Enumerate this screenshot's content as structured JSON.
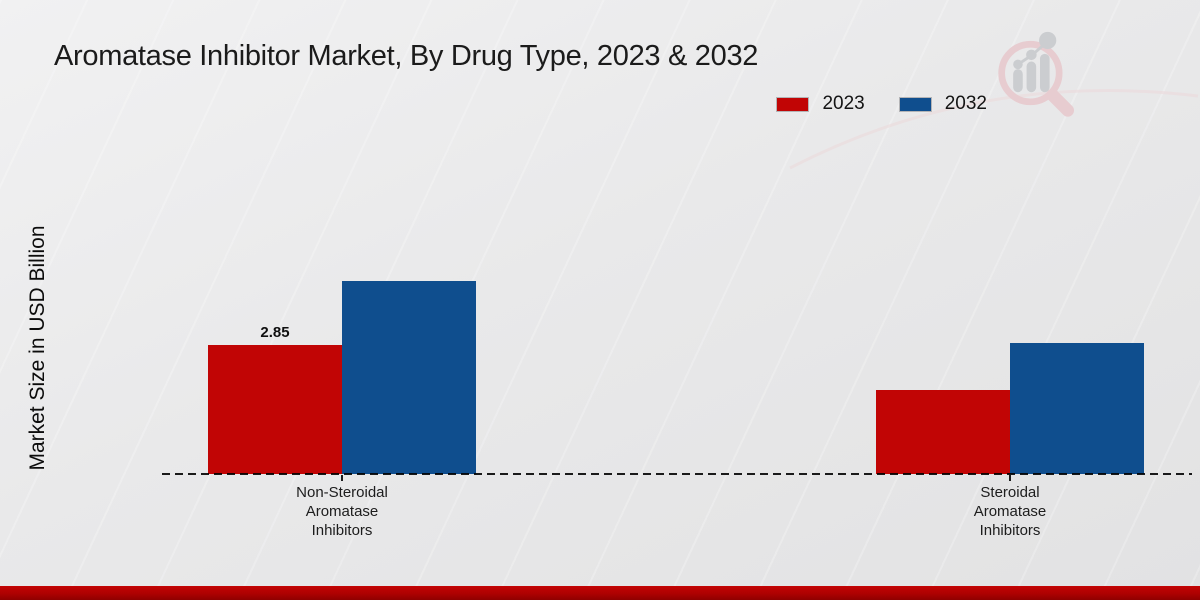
{
  "title": "Aromatase Inhibitor Market, By Drug Type, 2023 & 2032",
  "ylabel": "Market Size in USD Billion",
  "colors": {
    "series_2023": "#c10505",
    "series_2032": "#0f4e8e",
    "background": "#e9e9ea",
    "baseline": "#1c1c1c",
    "bottom_bar": "#ad0101",
    "logo_pink": "#e7ccd0",
    "logo_gray": "#cbcdd0"
  },
  "icons": {
    "logo": "magnifier-bar-chart-logo"
  },
  "chart_data": {
    "type": "bar",
    "title": "Aromatase Inhibitor Market, By Drug Type, 2023 & 2032",
    "ylabel": "Market Size in USD Billion",
    "categories": [
      "Non-Steroidal Aromatase Inhibitors",
      "Steroidal Aromatase Inhibitors"
    ],
    "series": [
      {
        "name": "2023",
        "color": "#c10505",
        "values": [
          2.85,
          1.85
        ],
        "bar_labels": [
          "2.85",
          null
        ]
      },
      {
        "name": "2032",
        "color": "#0f4e8e",
        "values": [
          4.25,
          2.9
        ],
        "bar_labels": [
          null,
          null
        ]
      }
    ],
    "ylim": [
      0,
      5
    ],
    "grid": false,
    "legend_position": "top-right",
    "baseline_style": "dashed",
    "units": "USD Billion"
  }
}
